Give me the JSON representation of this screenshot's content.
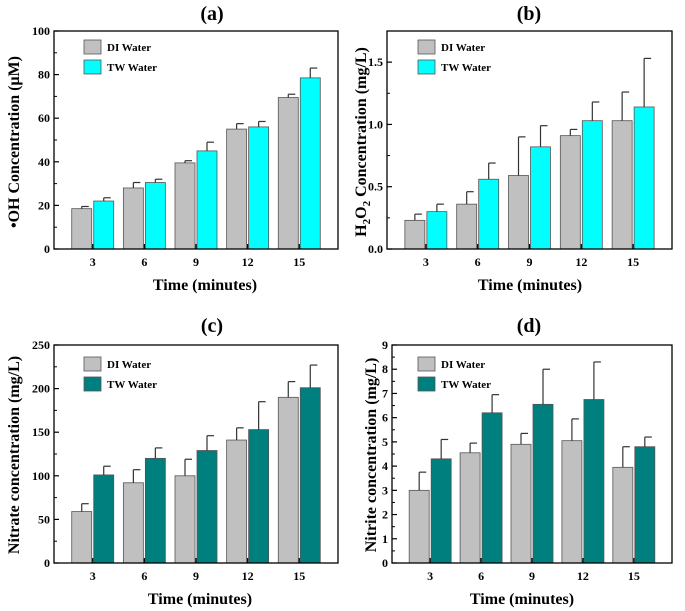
{
  "chart_data": [
    {
      "type": "bar",
      "panel_label": "(a)",
      "title": "(a)",
      "xlabel": "Time (minutes)",
      "ylabel_prefix": "•OH Concentration (",
      "ylabel_greek": "μ",
      "ylabel_suffix": "M)",
      "categories": [
        "3",
        "6",
        "9",
        "12",
        "15"
      ],
      "ylim": [
        0,
        100
      ],
      "yticks": [
        0,
        20,
        40,
        60,
        80,
        100
      ],
      "ytick_labels": [
        "0",
        "20",
        "40",
        "60",
        "80",
        "100"
      ],
      "series": [
        {
          "name": "DI Water",
          "color": "#c0c0c0",
          "values": [
            18.5,
            28,
            39.5,
            55,
            69.5
          ],
          "errors": [
            1,
            2.5,
            1,
            2.5,
            1.5
          ]
        },
        {
          "name": "TW Water",
          "color": "#00ffff",
          "values": [
            22,
            30.5,
            45,
            56,
            78.5
          ],
          "errors": [
            1.5,
            1.5,
            4,
            2.5,
            4.5
          ]
        }
      ]
    },
    {
      "type": "bar",
      "panel_label": "(b)",
      "title": "(b)",
      "xlabel": "Time (minutes)",
      "ylabel_parts": [
        "H",
        "2",
        "O",
        "2",
        " Concentration (mg/L)"
      ],
      "categories": [
        "3",
        "6",
        "9",
        "12",
        "15"
      ],
      "ylim": [
        0,
        1.75
      ],
      "yticks": [
        0,
        0.5,
        1.0,
        1.5
      ],
      "ytick_labels": [
        "0.0",
        "0.5",
        "1.0",
        "1.5"
      ],
      "series": [
        {
          "name": "DI Water",
          "color": "#c0c0c0",
          "values": [
            0.23,
            0.36,
            0.59,
            0.91,
            1.03
          ],
          "errors": [
            0.05,
            0.1,
            0.31,
            0.05,
            0.23
          ]
        },
        {
          "name": "TW Water",
          "color": "#00ffff",
          "values": [
            0.3,
            0.56,
            0.82,
            1.03,
            1.14
          ],
          "errors": [
            0.06,
            0.13,
            0.17,
            0.15,
            0.39
          ]
        }
      ]
    },
    {
      "type": "bar",
      "panel_label": "(c)",
      "title": "(c)",
      "xlabel": "Time (minutes)",
      "ylabel": "Nitrate concentration (mg/L)",
      "categories": [
        "3",
        "6",
        "9",
        "12",
        "15"
      ],
      "ylim": [
        0,
        250
      ],
      "yticks": [
        0,
        50,
        100,
        150,
        200,
        250
      ],
      "ytick_labels": [
        "0",
        "50",
        "100",
        "150",
        "200",
        "250"
      ],
      "series": [
        {
          "name": "DI Water",
          "color": "#c0c0c0",
          "values": [
            59,
            92,
            100,
            141,
            190
          ],
          "errors": [
            9,
            15,
            19,
            14,
            18
          ]
        },
        {
          "name": "TW Water",
          "color": "#007f7f",
          "values": [
            101,
            120,
            129,
            153,
            201
          ],
          "errors": [
            10,
            12,
            17,
            32,
            26
          ]
        }
      ]
    },
    {
      "type": "bar",
      "panel_label": "(d)",
      "title": "(d)",
      "xlabel": "Time (minutes)",
      "ylabel": "Nitrite concentration (mg/L)",
      "categories": [
        "3",
        "6",
        "9",
        "12",
        "15"
      ],
      "ylim": [
        0,
        9
      ],
      "yticks": [
        0,
        1,
        2,
        3,
        4,
        5,
        6,
        7,
        8,
        9
      ],
      "ytick_labels": [
        "0",
        "1",
        "2",
        "3",
        "4",
        "5",
        "6",
        "7",
        "8",
        "9"
      ],
      "series": [
        {
          "name": "DI Water",
          "color": "#c0c0c0",
          "values": [
            3.0,
            4.55,
            4.9,
            5.05,
            3.95
          ],
          "errors": [
            0.75,
            0.4,
            0.45,
            0.9,
            0.85
          ]
        },
        {
          "name": "TW Water",
          "color": "#007f7f",
          "values": [
            4.3,
            6.2,
            6.55,
            6.75,
            4.8
          ],
          "errors": [
            0.8,
            0.75,
            1.45,
            1.55,
            0.4
          ]
        }
      ]
    }
  ]
}
